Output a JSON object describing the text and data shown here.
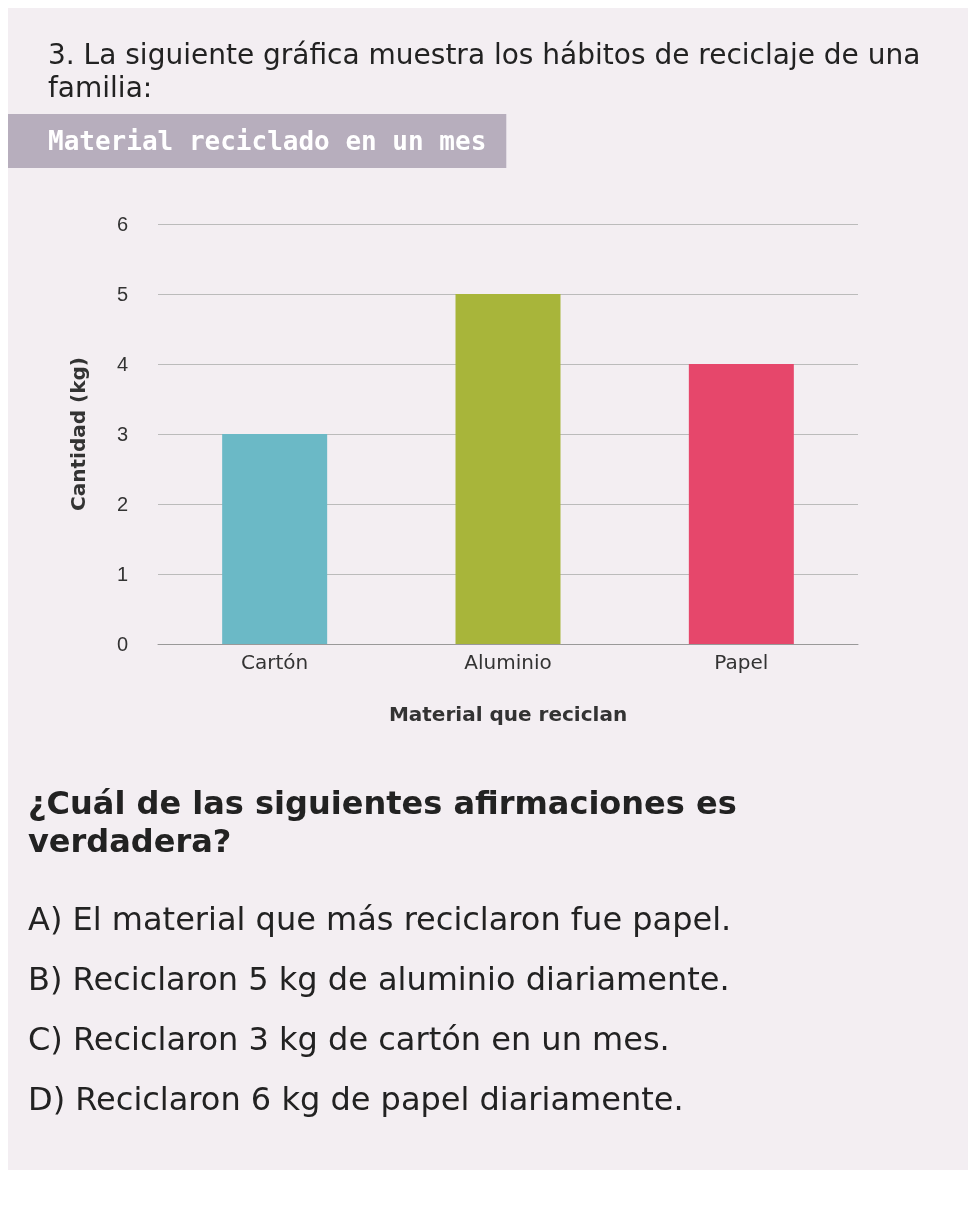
{
  "chart_data": {
    "type": "bar",
    "title": "Material reciclado en un mes",
    "xlabel": "Material que reciclan",
    "ylabel": "Cantidad (kg)",
    "categories": [
      "Cartón",
      "Aluminio",
      "Papel"
    ],
    "values": [
      3,
      5,
      4
    ],
    "colors": [
      "#6bb9c6",
      "#a8b53a",
      "#e6476b"
    ],
    "ylim": [
      0,
      6
    ],
    "yticks": [
      0,
      1,
      2,
      3,
      4,
      5,
      6
    ],
    "grid": "y",
    "annotations": [
      "3. La siguiente gráfica muestra los hábitos de reciclaje de una familia:",
      "¿Cuál de las siguientes afirmaciones es verdadera?",
      "A) El material que más reciclaron fue papel.",
      "B) Reciclaron 5 kg de aluminio diariamente.",
      "C) Reciclaron 3 kg de cartón en un mes.",
      "D) Reciclaron 6 kg de papel diariamente."
    ]
  }
}
